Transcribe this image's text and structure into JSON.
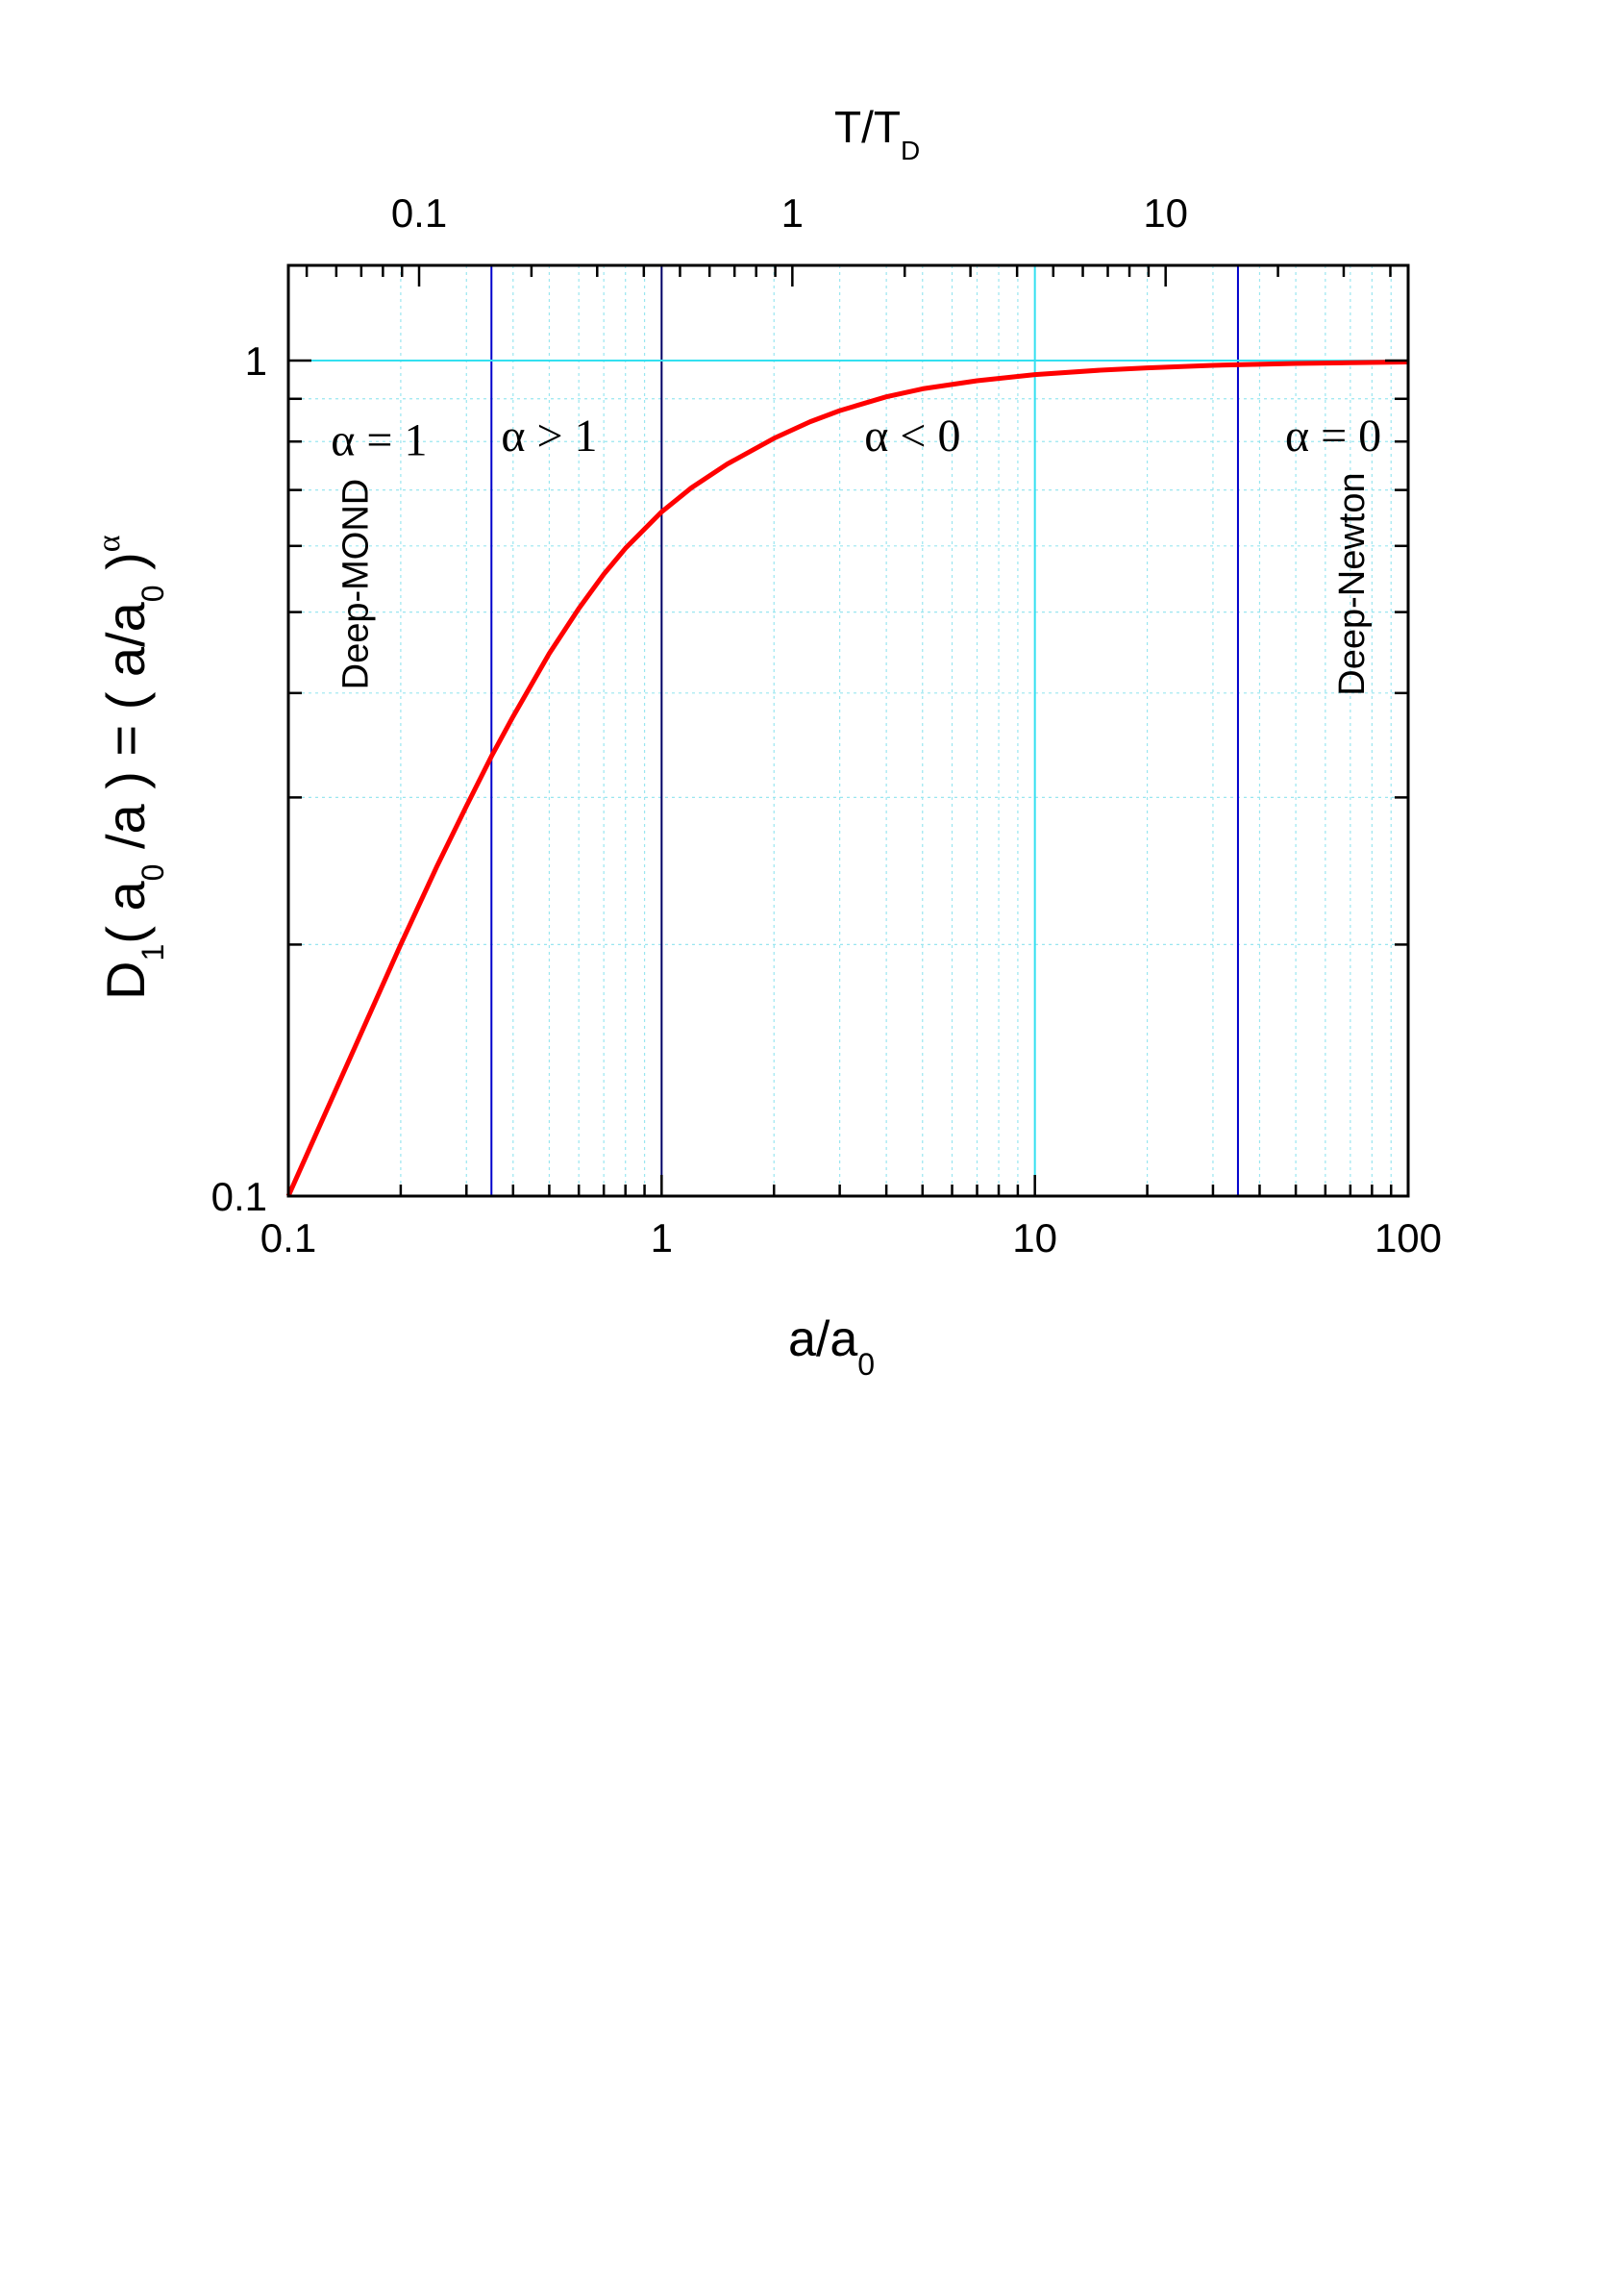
{
  "chart_data": {
    "type": "line",
    "title": "",
    "xlabel": {
      "main": "a/a",
      "sub": "0"
    },
    "top_xlabel": {
      "main": "T/T",
      "sub": "D"
    },
    "ylabel": {
      "p1": "D",
      "p1_sub": "1",
      "p2": "( a",
      "p2_sub": "0",
      "p3": " /a ) = ( a/a",
      "p3_sub": "0",
      "p4": " )",
      "p4_sup": "α"
    },
    "x_scale": "log",
    "y_scale": "log",
    "xlim": [
      0.1,
      100
    ],
    "ylim": [
      0.1,
      1.3
    ],
    "x_ticks": [
      {
        "value": 0.1,
        "label": "0.1"
      },
      {
        "value": 1,
        "label": "1"
      },
      {
        "value": 10,
        "label": "10"
      },
      {
        "value": 100,
        "label": "100"
      }
    ],
    "y_ticks": [
      {
        "value": 0.1,
        "label": "0.1"
      },
      {
        "value": 1,
        "label": "1"
      }
    ],
    "top_x_ticks": [
      {
        "a_value": 0.224,
        "label": "0.1"
      },
      {
        "a_value": 2.24,
        "label": "1"
      },
      {
        "a_value": 22.4,
        "label": "10"
      }
    ],
    "grid": true,
    "series": [
      {
        "color": "#ff0000",
        "x": [
          0.1,
          0.12,
          0.15,
          0.2,
          0.25,
          0.3,
          0.35,
          0.4,
          0.5,
          0.6,
          0.7,
          0.8,
          1,
          1.2,
          1.5,
          2,
          2.5,
          3,
          4,
          5,
          7,
          10,
          15,
          20,
          30,
          50,
          70,
          100
        ],
        "y": [
          0.1,
          0.12,
          0.15,
          0.2,
          0.248,
          0.293,
          0.336,
          0.375,
          0.446,
          0.505,
          0.555,
          0.596,
          0.659,
          0.704,
          0.752,
          0.807,
          0.845,
          0.871,
          0.905,
          0.925,
          0.946,
          0.962,
          0.974,
          0.98,
          0.987,
          0.992,
          0.994,
          0.996
        ]
      }
    ],
    "vertical_lines": [
      {
        "x": 0.35,
        "color": "#0000cc"
      },
      {
        "x": 1,
        "color": "#000066"
      },
      {
        "x": 10,
        "color": "#33e0f0"
      },
      {
        "x": 35,
        "color": "#0000cc"
      }
    ],
    "horizontal_lines": [
      {
        "y": 1,
        "color": "#33e0f0"
      }
    ],
    "region_labels": [
      {
        "text": "α = 1",
        "x": 0.175,
        "y": 0.77
      },
      {
        "text": "α > 1",
        "x": 0.5,
        "y": 0.78
      },
      {
        "text": "α < 0",
        "x": 4.7,
        "y": 0.78
      },
      {
        "text": "α = 0",
        "x": 63,
        "y": 0.78
      }
    ],
    "vertical_annotations": [
      {
        "text": "Deep-MOND",
        "x": 0.15,
        "y": 0.54
      },
      {
        "text": "Deep-Newton",
        "x": 70,
        "y": 0.54
      }
    ]
  }
}
